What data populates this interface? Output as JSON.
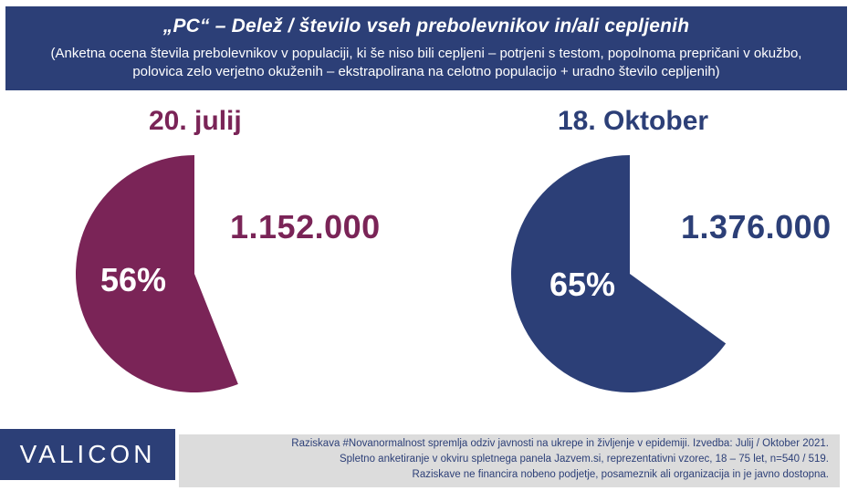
{
  "header": {
    "title": "„PC“ – Delež / število vseh prebolevnikov in/ali cepljenih",
    "subtitle": "(Anketna ocena števila prebolevnikov v populaciji, ki še niso bili cepljeni – potrjeni s testom, popolnoma prepričani v okužbo, polovica zelo verjetno okuženih – ekstrapolirana na celotno populacijo + uradno število cepljenih)"
  },
  "chart_data": [
    {
      "type": "pie",
      "title": "20. julij",
      "value_percent": 56,
      "label": "56%",
      "count": "1.152.000",
      "color": "#7a2457"
    },
    {
      "type": "pie",
      "title": "18. Oktober",
      "value_percent": 65,
      "label": "65%",
      "count": "1.376.000",
      "color": "#2c3f77"
    }
  ],
  "footer": {
    "logo": "VALICON",
    "lines": [
      "Raziskava #Novanormalnost spremlja odziv javnosti na ukrepe in življenje v epidemiji. Izvedba: Julij / Oktober 2021.",
      "Spletno anketiranje v okviru spletnega panela Jazvem.si, reprezentativni vzorec, 18 – 75 let, n=540 / 519.",
      "Raziskave ne financira nobeno podjetje, posameznik ali organizacija in je javno dostopna."
    ]
  }
}
